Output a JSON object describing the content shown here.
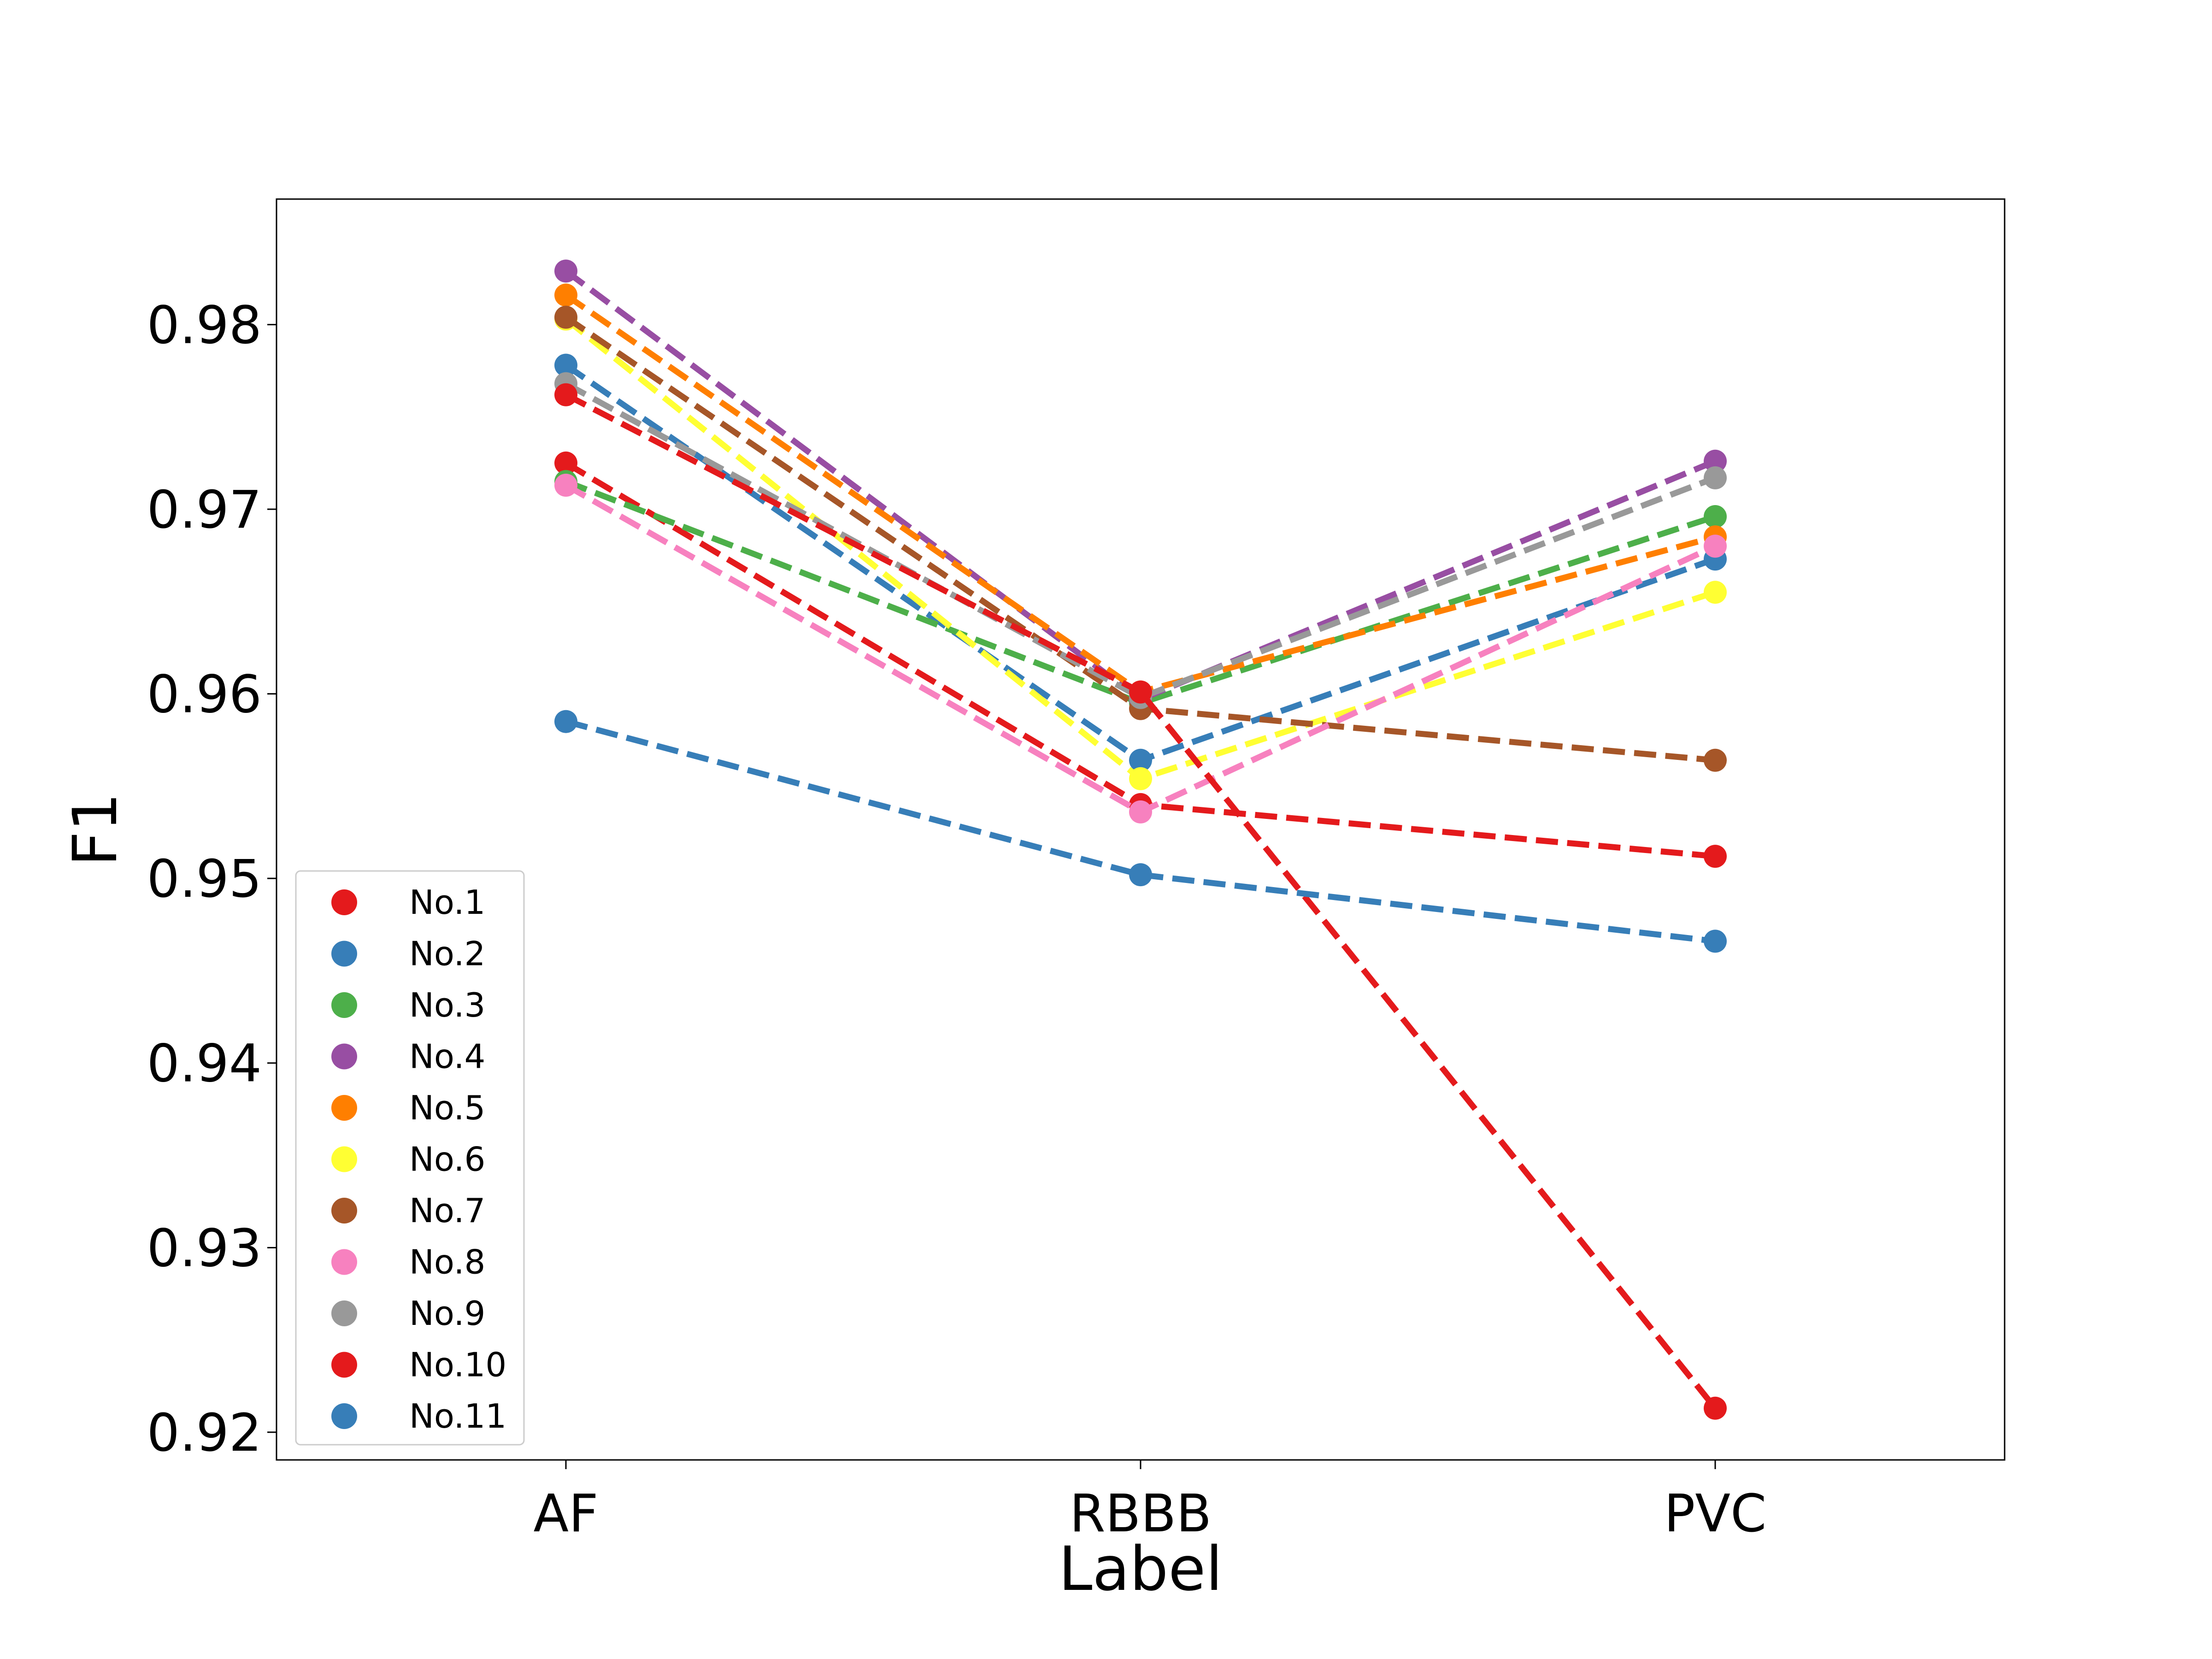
{
  "chart_data": {
    "type": "line",
    "xlabel": "Label",
    "ylabel": "F1",
    "categories": [
      "AF",
      "RBBB",
      "PVC"
    ],
    "ylim": [
      0.9185,
      0.9868
    ],
    "yticks": [
      0.92,
      0.93,
      0.94,
      0.95,
      0.96,
      0.97,
      0.98
    ],
    "ytick_labels": [
      "0.92",
      "0.93",
      "0.94",
      "0.95",
      "0.96",
      "0.97",
      "0.98"
    ],
    "grid": false,
    "legend_position": "bottom-left",
    "line_style": "dashed",
    "series": [
      {
        "name": "No.1",
        "color": "#e41a1c",
        "values": [
          0.9725,
          0.954,
          0.9512
        ]
      },
      {
        "name": "No.2",
        "color": "#377eb8",
        "values": [
          0.9778,
          0.9564,
          0.9673
        ]
      },
      {
        "name": "No.3",
        "color": "#4daf4a",
        "values": [
          0.9715,
          0.9595,
          0.9696
        ]
      },
      {
        "name": "No.4",
        "color": "#984ea3",
        "values": [
          0.9829,
          0.9597,
          0.9726
        ]
      },
      {
        "name": "No.5",
        "color": "#ff7f00",
        "values": [
          0.9816,
          0.9601,
          0.9685
        ]
      },
      {
        "name": "No.6",
        "color": "#ffff33",
        "values": [
          0.9803,
          0.9554,
          0.9655
        ]
      },
      {
        "name": "No.7",
        "color": "#a65628",
        "values": [
          0.9804,
          0.9592,
          0.9564
        ]
      },
      {
        "name": "No.8",
        "color": "#f781bf",
        "values": [
          0.9713,
          0.9536,
          0.968
        ]
      },
      {
        "name": "No.9",
        "color": "#999999",
        "values": [
          0.9768,
          0.9598,
          0.9717
        ]
      },
      {
        "name": "No.10",
        "color": "#e41a1c",
        "values": [
          0.9762,
          0.9601,
          0.9213
        ]
      },
      {
        "name": "No.11",
        "color": "#377eb8",
        "values": [
          0.9585,
          0.9502,
          0.9466
        ]
      }
    ]
  }
}
